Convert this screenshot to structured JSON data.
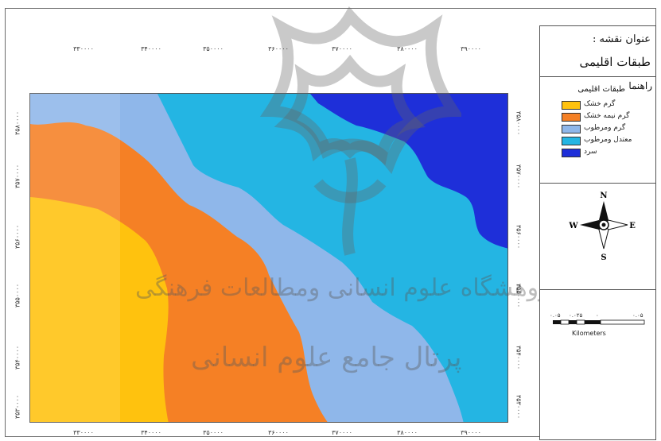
{
  "map": {
    "title_label": "عنوان نقشه :",
    "title": "طبقات اقلیمی",
    "legend_label": "راهنما",
    "legend_title": "طبقات اقلیمی",
    "legend_items": [
      {
        "label": "گرم خشک",
        "color": "#ffc20e"
      },
      {
        "label": "گرم نیمه خشک",
        "color": "#f58025"
      },
      {
        "label": "گرم ومرطوب",
        "color": "#8fb7ea"
      },
      {
        "label": "معتدل ومرطوب",
        "color": "#24b5e3"
      },
      {
        "label": "سرد",
        "color": "#1e2fd9"
      }
    ],
    "north_arrow": {
      "n": "N",
      "s": "S",
      "e": "E",
      "w": "W"
    },
    "scale_bar": {
      "labels": [
        "۰.۰۵",
        "۰.۰۲۵",
        "۰",
        "۰.۰۵"
      ],
      "unit": "Kilometers"
    },
    "x_ticks": [
      "۳۳۰۰۰۰",
      "۳۴۰۰۰۰",
      "۳۵۰۰۰۰",
      "۳۶۰۰۰۰",
      "۳۷۰۰۰۰",
      "۳۸۰۰۰۰",
      "۳۹۰۰۰۰"
    ],
    "y_ticks": [
      "۳۵۸۰۰۰۰",
      "۳۵۷۰۰۰۰",
      "۳۵۶۰۰۰۰",
      "۳۵۵۰۰۰۰",
      "۳۵۴۰۰۰۰",
      "۳۵۳۰۰۰۰"
    ],
    "watermark": {
      "line1": "پژوهشگاه علوم انسانی ومطالعات فرهنگی",
      "line2": "پرتال جامع علوم انسانی"
    },
    "colors": {
      "hot_dry": "#ffc20e",
      "hot_semi_dry": "#f58025",
      "hot_humid": "#8fb7ea",
      "temperate_humid": "#24b5e3",
      "cold": "#1e2fd9"
    }
  }
}
